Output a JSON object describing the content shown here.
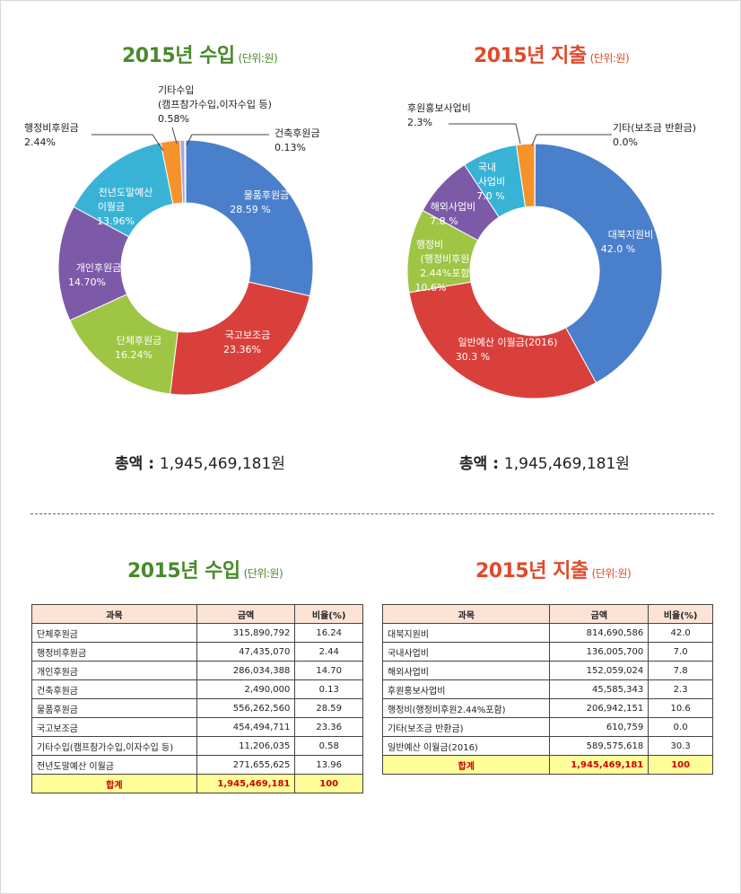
{
  "income": {
    "title": "2015년 수입",
    "unit": "(단위:원)",
    "total_label": "총액 : ",
    "total_value": "1,945,469,181원"
  },
  "expense": {
    "title": "2015년 지출",
    "unit": "(단위:원)",
    "total_label": "총액 : ",
    "total_value": "1,945,469,181원"
  },
  "colors": {
    "blue": "#4a7fcc",
    "red": "#d9403c",
    "green": "#9ec544",
    "purple": "#7c5aa8",
    "cyan": "#38b3d6",
    "orange": "#f5922a",
    "lavender": "#a6a6dc",
    "gray": "#bdbdbd"
  },
  "chart_data": [
    {
      "type": "pie",
      "title": "2015년 수입",
      "slices": [
        {
          "label": "물품후원금",
          "value": 28.59,
          "text": "28.59 %",
          "color": "#4a7fcc"
        },
        {
          "label": "국고보조금",
          "value": 23.36,
          "text": "23.36%",
          "color": "#d9403c"
        },
        {
          "label": "단체후원금",
          "value": 16.24,
          "text": "16.24%",
          "color": "#9ec544"
        },
        {
          "label": "개인후원금",
          "value": 14.7,
          "text": "14.70%",
          "color": "#7c5aa8"
        },
        {
          "label": "전년도말예산 이월금",
          "value": 13.96,
          "text": "13.96%",
          "color": "#38b3d6"
        },
        {
          "label": "행정비후원금",
          "value": 2.44,
          "text": "2.44%",
          "color": "#f5922a"
        },
        {
          "label": "기타수입 (캠프참가수입,이자수입 등)",
          "value": 0.58,
          "text": "0.58%",
          "color": "#a6a6dc"
        },
        {
          "label": "건축후원금",
          "value": 0.13,
          "text": "0.13%",
          "color": "#bdbdbd"
        }
      ]
    },
    {
      "type": "pie",
      "title": "2015년 지출",
      "slices": [
        {
          "label": "대북지원비",
          "value": 42.0,
          "text": "42.0 %",
          "color": "#4a7fcc"
        },
        {
          "label": "일반예산 이월금(2016)",
          "value": 30.3,
          "text": "30.3 %",
          "color": "#d9403c"
        },
        {
          "label": "행정비 (행정비후원 2.44%포함)",
          "value": 10.6,
          "text": "10.6%",
          "color": "#9ec544"
        },
        {
          "label": "해외사업비",
          "value": 7.8,
          "text": "7.8 %",
          "color": "#7c5aa8"
        },
        {
          "label": "국내 사업비",
          "value": 7.0,
          "text": "7.0 %",
          "color": "#38b3d6"
        },
        {
          "label": "후원홍보사업비",
          "value": 2.3,
          "text": "2.3%",
          "color": "#f5922a"
        },
        {
          "label": "기타(보조금 반환금)",
          "value": 0.0,
          "text": "0.0%",
          "color": "#a6a6dc"
        }
      ]
    }
  ],
  "labels_income": {
    "l1a": "물품후원금",
    "l1b": "28.59 %",
    "l2a": "국고보조금",
    "l2b": "23.36%",
    "l3a": "단체후원금",
    "l3b": "16.24%",
    "l4a": "개인후원금",
    "l4b": "14.70%",
    "l5a": "전년도말예산",
    "l5b": "이월금",
    "l5c": "13.96%",
    "l6a": "행정비후원금",
    "l6b": "2.44%",
    "l7a": "기타수입",
    "l7b": "(캠프참가수입,이자수입 등)",
    "l7c": "0.58%",
    "l8a": "건축후원금",
    "l8b": "0.13%"
  },
  "labels_expense": {
    "l1a": "대북지원비",
    "l1b": "42.0 %",
    "l2a": "일반예산 이월금(2016)",
    "l2b": "30.3 %",
    "l3a": "행정비",
    "l3b": "(행정비후원",
    "l3c": "2.44%포함)",
    "l3d": "10.6%",
    "l4a": "해외사업비",
    "l4b": "7.8 %",
    "l5a": "국내",
    "l5b": "사업비",
    "l5c": "7.0 %",
    "l6a": "후원홍보사업비",
    "l6b": "2.3%",
    "l7a": "기타(보조금 반환금)",
    "l7b": "0.0%"
  },
  "income_table": {
    "title": "2015년 수입",
    "unit": "(단위:원)",
    "headers": [
      "과목",
      "금액",
      "비율(%)"
    ],
    "rows": [
      {
        "name": "단체후원금",
        "amount": "315,890,792",
        "rate": "16.24"
      },
      {
        "name": "행정비후원금",
        "amount": "47,435,070",
        "rate": "2.44"
      },
      {
        "name": "개인후원금",
        "amount": "286,034,388",
        "rate": "14.70"
      },
      {
        "name": "건축후원금",
        "amount": "2,490,000",
        "rate": "0.13"
      },
      {
        "name": "물품후원금",
        "amount": "556,262,560",
        "rate": "28.59"
      },
      {
        "name": "국고보조금",
        "amount": "454,494,711",
        "rate": "23.36"
      },
      {
        "name": "기타수입(캠프참가수입,이자수입 등)",
        "amount": "11,206,035",
        "rate": "0.58"
      },
      {
        "name": "전년도말예산 이월금",
        "amount": "271,655,625",
        "rate": "13.96"
      }
    ],
    "total": {
      "name": "합계",
      "amount": "1,945,469,181",
      "rate": "100"
    }
  },
  "expense_table": {
    "title": "2015년 지출",
    "unit": "(단위:원)",
    "headers": [
      "과목",
      "금액",
      "비율(%)"
    ],
    "rows": [
      {
        "name": "대북지원비",
        "amount": "814,690,586",
        "rate": "42.0"
      },
      {
        "name": "국내사업비",
        "amount": "136,005,700",
        "rate": "7.0"
      },
      {
        "name": "해외사업비",
        "amount": "152,059,024",
        "rate": "7.8"
      },
      {
        "name": "후원홍보사업비",
        "amount": "45,585,343",
        "rate": "2.3"
      },
      {
        "name": "행정비(행정비후원2.44%포함)",
        "amount": "206,942,151",
        "rate": "10.6"
      },
      {
        "name": "기타(보조금 반환금)",
        "amount": "610,759",
        "rate": "0.0"
      },
      {
        "name": "일반예산 이월금(2016)",
        "amount": "589,575,618",
        "rate": "30.3"
      }
    ],
    "total": {
      "name": "합계",
      "amount": "1,945,469,181",
      "rate": "100"
    }
  }
}
